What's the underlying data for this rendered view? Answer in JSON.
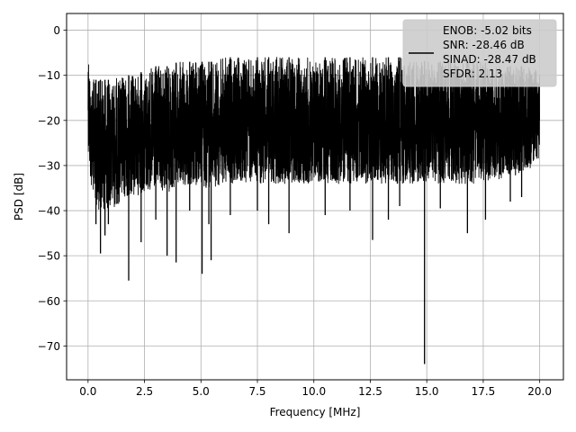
{
  "chart_data": {
    "type": "line",
    "xlabel": "Frequency [MHz]",
    "ylabel": "PSD [dB]",
    "xlim": [
      -0.95,
      21.05
    ],
    "ylim": [
      -77.5,
      3.7
    ],
    "xticks": [
      0.0,
      2.5,
      5.0,
      7.5,
      10.0,
      12.5,
      15.0,
      17.5,
      20.0
    ],
    "xtick_labels": [
      "0.0",
      "2.5",
      "5.0",
      "7.5",
      "10.0",
      "12.5",
      "15.0",
      "17.5",
      "20.0"
    ],
    "yticks": [
      0,
      -10,
      -20,
      -30,
      -40,
      -50,
      -60,
      -70
    ],
    "ytick_labels": [
      "0",
      "−10",
      "−20",
      "−30",
      "−40",
      "−50",
      "−60",
      "−70"
    ],
    "grid": true,
    "legend_position": "top-right",
    "line_color": "#000000",
    "series": [
      {
        "name": "ENOB: -5.02 bits\nSNR: -28.46 dB\nSINAD: -28.47 dB\nSFDR: 2.13",
        "envelope_x": [
          0.0,
          0.1,
          0.3,
          0.5,
          1.0,
          1.5,
          2.0,
          2.5,
          3.0,
          3.5,
          4.0,
          4.5,
          5.0,
          5.5,
          6.0,
          6.5,
          7.0,
          7.5,
          8.0,
          8.5,
          9.0,
          9.5,
          10.0,
          10.5,
          11.0,
          11.5,
          12.0,
          12.5,
          13.0,
          13.5,
          14.0,
          14.5,
          15.0,
          15.5,
          16.0,
          16.5,
          17.0,
          17.5,
          18.0,
          18.5,
          19.0,
          19.5,
          20.0
        ],
        "envelope_top": [
          0,
          -10,
          -11,
          -11,
          -11,
          -10,
          -10,
          -9,
          -8,
          -8,
          -7,
          -7,
          -7,
          -7,
          -6,
          -6,
          -6,
          -6,
          -6,
          -6,
          -6,
          -6,
          -6,
          -6,
          -6,
          -6,
          -6,
          -6,
          -6,
          -6,
          -6,
          -6,
          -7,
          -7,
          -7,
          -7,
          -7,
          -7,
          -8,
          -8,
          -8,
          -8,
          -9
        ],
        "envelope_bottom": [
          -26,
          -34,
          -38,
          -40,
          -40,
          -38,
          -37,
          -36,
          -36,
          -36,
          -35,
          -35,
          -35,
          -35,
          -34,
          -34,
          -34,
          -34,
          -34,
          -34,
          -34,
          -34,
          -34,
          -34,
          -34,
          -34,
          -34,
          -34,
          -34,
          -34,
          -34,
          -34,
          -34,
          -34,
          -34,
          -34,
          -34,
          -34,
          -33,
          -33,
          -32,
          -31,
          -28
        ],
        "dips": [
          {
            "x": 0.0,
            "y": 0.0
          },
          {
            "x": 0.35,
            "y": -43
          },
          {
            "x": 0.55,
            "y": -49.5
          },
          {
            "x": 0.75,
            "y": -45.5
          },
          {
            "x": 0.9,
            "y": -43
          },
          {
            "x": 1.8,
            "y": -55.5
          },
          {
            "x": 2.35,
            "y": -47
          },
          {
            "x": 3.0,
            "y": -42
          },
          {
            "x": 3.5,
            "y": -50
          },
          {
            "x": 3.9,
            "y": -51.5
          },
          {
            "x": 4.5,
            "y": -40
          },
          {
            "x": 5.05,
            "y": -54
          },
          {
            "x": 5.35,
            "y": -43
          },
          {
            "x": 5.45,
            "y": -51
          },
          {
            "x": 6.3,
            "y": -41
          },
          {
            "x": 7.5,
            "y": -40
          },
          {
            "x": 8.0,
            "y": -43
          },
          {
            "x": 8.9,
            "y": -45
          },
          {
            "x": 10.5,
            "y": -41
          },
          {
            "x": 11.6,
            "y": -40
          },
          {
            "x": 12.6,
            "y": -46.5
          },
          {
            "x": 13.3,
            "y": -42
          },
          {
            "x": 13.8,
            "y": -39
          },
          {
            "x": 14.9,
            "y": -74
          },
          {
            "x": 15.6,
            "y": -39.5
          },
          {
            "x": 16.8,
            "y": -45
          },
          {
            "x": 17.6,
            "y": -42
          },
          {
            "x": 18.7,
            "y": -38
          },
          {
            "x": 19.2,
            "y": -37
          }
        ]
      }
    ]
  }
}
